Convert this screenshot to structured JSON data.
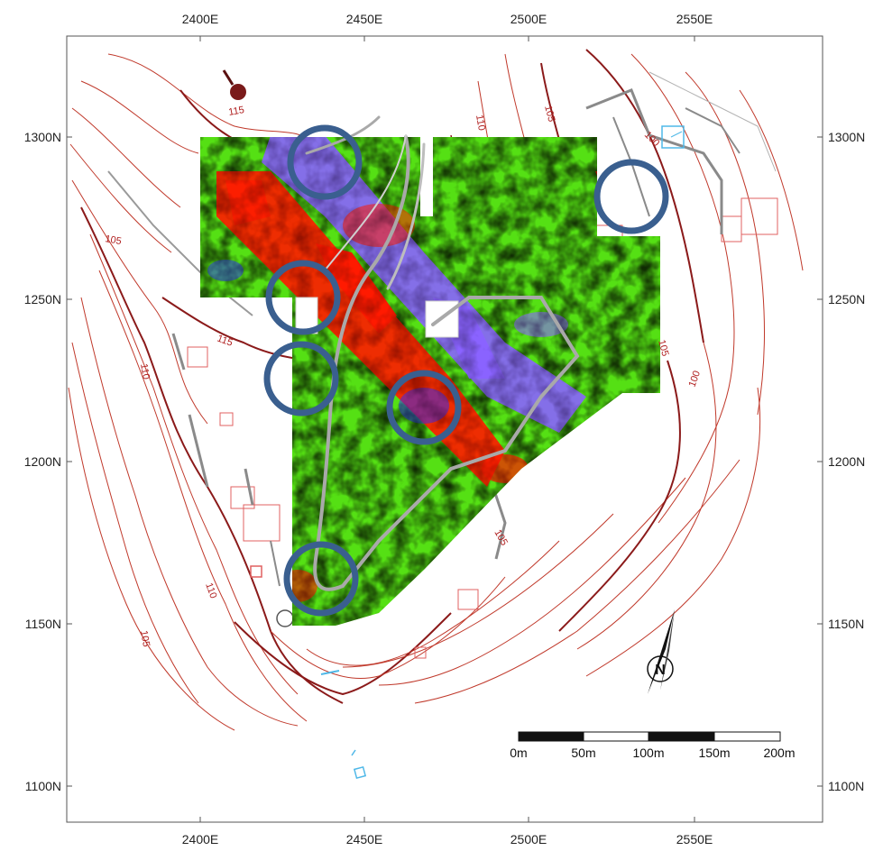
{
  "map": {
    "x_ticks": [
      "2400E",
      "2450E",
      "2500E",
      "2550E"
    ],
    "y_ticks": [
      "1300N",
      "1250N",
      "1200N",
      "1150N",
      "1100N"
    ],
    "contour_labels": [
      "115",
      "110",
      "105",
      "100",
      "115",
      "110",
      "105",
      "100",
      "105",
      "110",
      "105",
      "105"
    ],
    "scale_labels": [
      "0m",
      "50m",
      "100m",
      "150m",
      "200m"
    ],
    "anomaly_circles": 6,
    "colors": {
      "frame": "#555555",
      "contour": "#c0392b",
      "contour_index": "#8b1a1a",
      "anomaly_circle": "#3a5f8f",
      "survey_green": "#55e014",
      "survey_red": "#ff1a00",
      "survey_purple": "#8a63ff",
      "survey_yellow": "#f2f21e",
      "path": "#a9a9a9",
      "building_red": "#e06060",
      "building_blue": "#4fb8e8"
    }
  }
}
